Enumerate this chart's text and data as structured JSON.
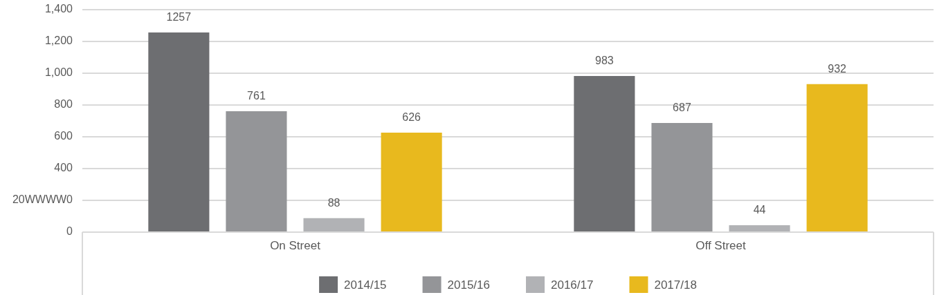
{
  "chart_data": {
    "type": "bar",
    "categories": [
      "On Street",
      "Off Street"
    ],
    "series": [
      {
        "name": "2014/15",
        "color": "#6d6e71",
        "values": [
          1257,
          983
        ]
      },
      {
        "name": "2015/16",
        "color": "#949598",
        "values": [
          761,
          687
        ]
      },
      {
        "name": "2016/17",
        "color": "#b1b2b5",
        "values": [
          88,
          44
        ]
      },
      {
        "name": "2017/18",
        "color": "#e8b91e",
        "values": [
          626,
          932
        ]
      }
    ],
    "ylim": [
      0,
      1400
    ],
    "yticks": [
      0,
      {
        "value": 200,
        "label": "20WWWW0"
      },
      400,
      600,
      800,
      {
        "value": 1000,
        "label": "1,000"
      },
      {
        "value": 1200,
        "label": "1,200"
      },
      {
        "value": 1400,
        "label": "1,400"
      }
    ],
    "grid": "y",
    "legend": "bottom",
    "data_labels": true
  }
}
